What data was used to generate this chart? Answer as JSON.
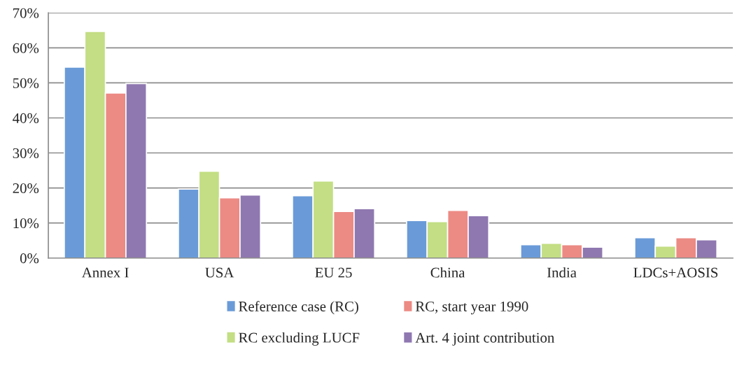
{
  "chart_data": {
    "type": "bar",
    "categories": [
      "Annex I",
      "USA",
      "EU 25",
      "China",
      "India",
      "LDCs+AOSIS"
    ],
    "series": [
      {
        "name": "Reference case (RC)",
        "color": "#6a9bd8",
        "values": [
          54.5,
          19.7,
          17.8,
          10.7,
          3.8,
          5.8
        ]
      },
      {
        "name": "RC excluding LUCF",
        "color": "#c3de84",
        "values": [
          64.7,
          24.8,
          22.0,
          10.4,
          4.2,
          3.4
        ]
      },
      {
        "name": "RC, start year 1990",
        "color": "#ec8a84",
        "values": [
          47.1,
          17.2,
          13.3,
          13.6,
          3.8,
          5.8
        ]
      },
      {
        "name": "Art. 4 joint contribution",
        "color": "#8f78b0",
        "values": [
          49.8,
          18.0,
          14.1,
          12.1,
          3.1,
          5.2
        ]
      }
    ],
    "ylim": [
      0,
      70
    ],
    "yticks": [
      {
        "value": 0,
        "label": "0%"
      },
      {
        "value": 10,
        "label": "10%"
      },
      {
        "value": 20,
        "label": "20%"
      },
      {
        "value": 30,
        "label": "30%"
      },
      {
        "value": 40,
        "label": "40%"
      },
      {
        "value": 50,
        "label": "50%"
      },
      {
        "value": 60,
        "label": "60%"
      },
      {
        "value": 70,
        "label": "70%"
      }
    ],
    "grid": "y",
    "legend": "bottom"
  }
}
